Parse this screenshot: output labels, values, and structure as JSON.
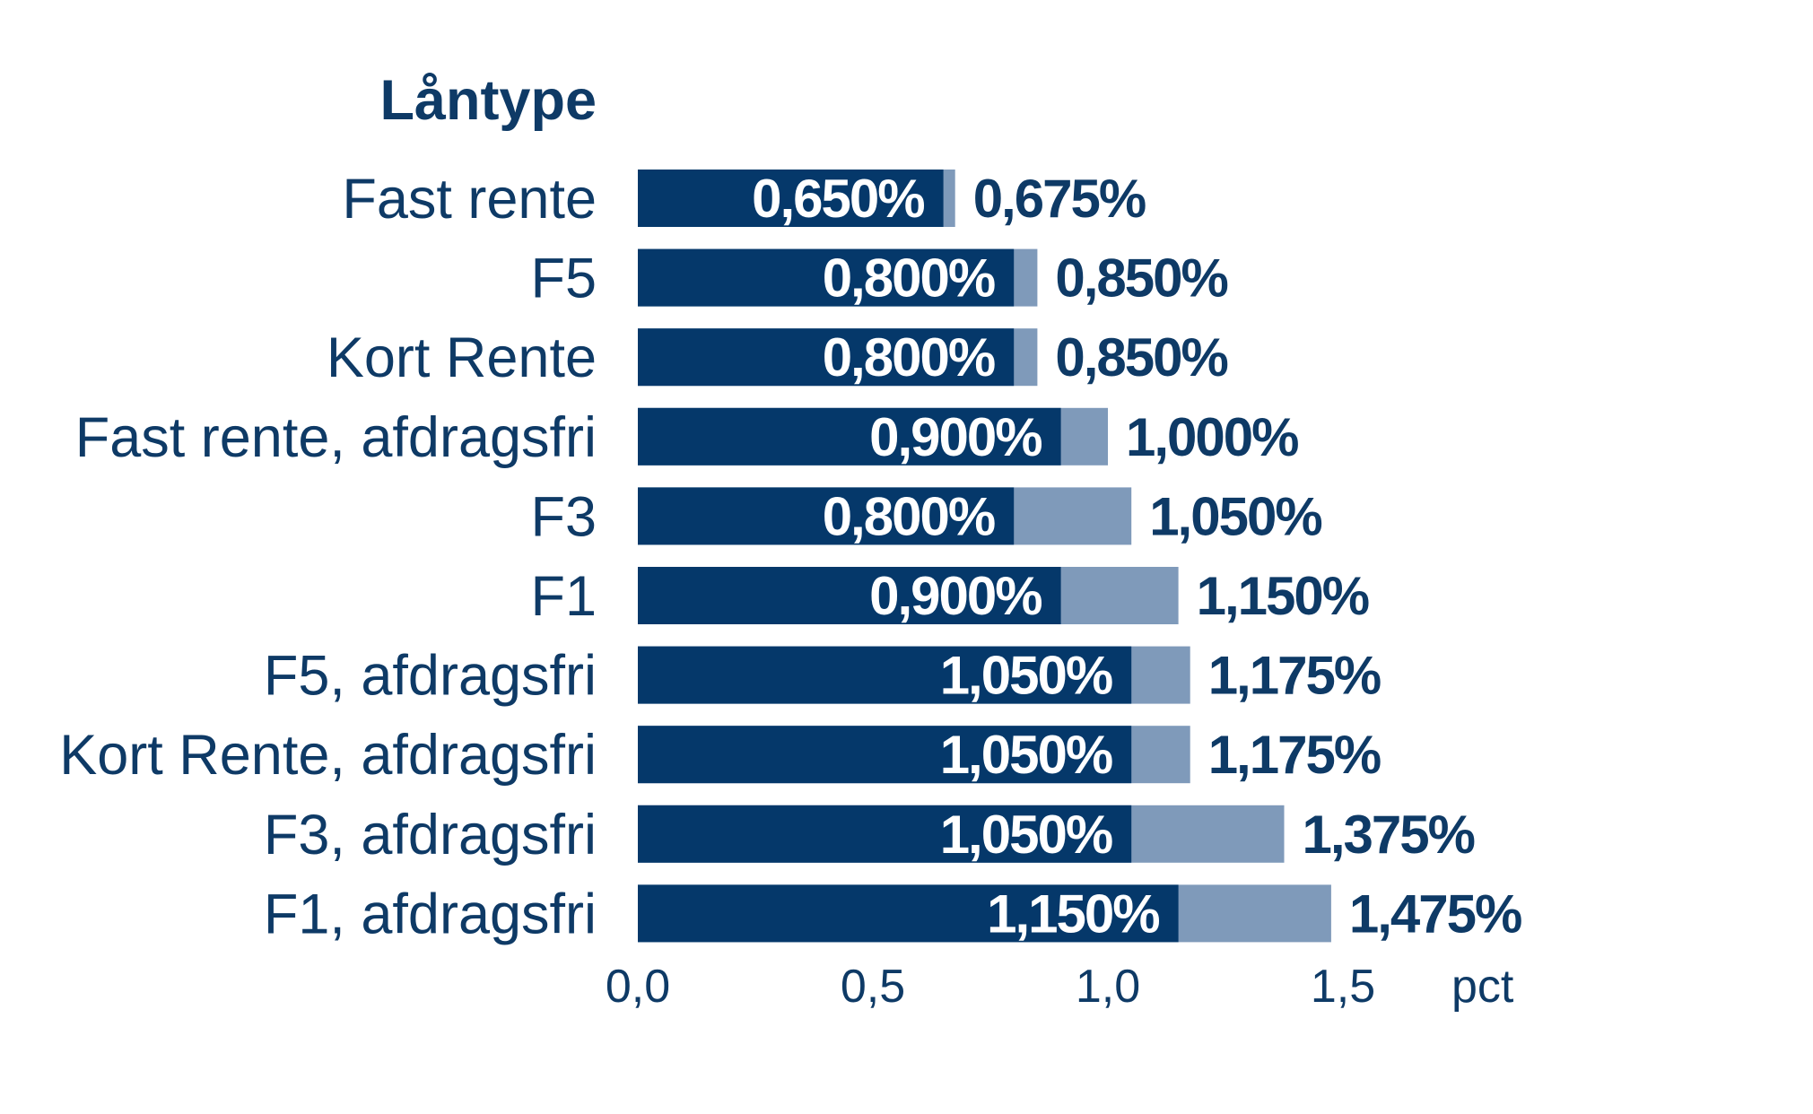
{
  "chart_data": {
    "type": "bar",
    "orientation": "horizontal",
    "title": "Låntype",
    "categories": [
      "Fast rente",
      "F5",
      "Kort Rente",
      "Fast rente, afdragsfri",
      "F3",
      "F1",
      "F5, afdragsfri",
      "Kort Rente, afdragsfri",
      "F3, afdragsfri",
      "F1, afdragsfri"
    ],
    "series": [
      {
        "values": [
          0.65,
          0.8,
          0.8,
          0.9,
          0.8,
          0.9,
          1.05,
          1.05,
          1.05,
          1.15
        ],
        "labels": [
          "0,650%",
          "0,800%",
          "0,800%",
          "0,900%",
          "0,800%",
          "0,900%",
          "1,050%",
          "1,050%",
          "1,050%",
          "1,150%"
        ],
        "color": "#05386a"
      },
      {
        "values": [
          0.675,
          0.85,
          0.85,
          1.0,
          1.05,
          1.15,
          1.175,
          1.175,
          1.375,
          1.475
        ],
        "labels": [
          "0,675%",
          "0,850%",
          "0,850%",
          "1,000%",
          "1,050%",
          "1,150%",
          "1,175%",
          "1,175%",
          "1,375%",
          "1,475%"
        ],
        "color": "#7f9aba"
      }
    ],
    "xlim": [
      0,
      1.5
    ],
    "xticks": [
      0,
      0.5,
      1.0,
      1.5
    ],
    "xtick_labels": [
      "0,0",
      "0,5",
      "1,0",
      "1,5"
    ],
    "xunit": "pct",
    "grid": false,
    "legend": "none"
  }
}
